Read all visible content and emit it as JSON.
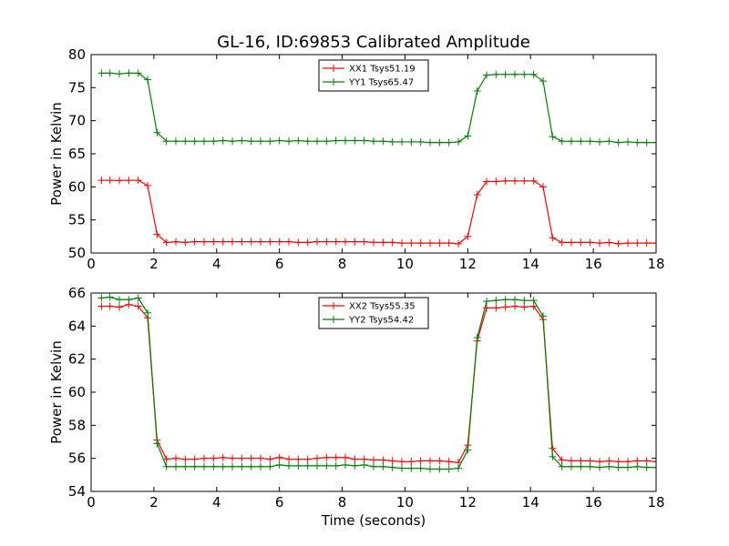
{
  "chart_data": [
    {
      "type": "line",
      "title": "GL-16, ID:69853 Calibrated Amplitude",
      "xlabel": "",
      "ylabel": "Power in Kelvin",
      "xlim": [
        0,
        18
      ],
      "ylim": [
        50,
        80
      ],
      "xticks": [
        0,
        2,
        4,
        6,
        8,
        10,
        12,
        14,
        16,
        18
      ],
      "yticks": [
        50,
        55,
        60,
        65,
        70,
        75,
        80
      ],
      "legend_position": "top-center",
      "x": [
        0.33,
        0.6,
        0.9,
        1.2,
        1.5,
        1.8,
        2.1,
        2.4,
        2.7,
        3.0,
        3.3,
        3.6,
        3.9,
        4.2,
        4.5,
        4.8,
        5.1,
        5.4,
        5.7,
        6.0,
        6.3,
        6.6,
        6.9,
        7.2,
        7.5,
        7.8,
        8.1,
        8.4,
        8.7,
        9.0,
        9.3,
        9.6,
        9.9,
        10.2,
        10.5,
        10.8,
        11.1,
        11.4,
        11.7,
        12.0,
        12.3,
        12.6,
        12.9,
        13.2,
        13.5,
        13.8,
        14.1,
        14.4,
        14.7,
        15.0,
        15.3,
        15.6,
        15.9,
        16.2,
        16.5,
        16.8,
        17.1,
        17.4,
        17.7,
        18.0
      ],
      "series": [
        {
          "name": "XX1 Tsys51.19",
          "color": "#ff0000",
          "values": [
            61.0,
            61.0,
            60.95,
            61.0,
            61.0,
            60.2,
            52.8,
            51.6,
            51.7,
            51.6,
            51.7,
            51.7,
            51.7,
            51.7,
            51.7,
            51.7,
            51.7,
            51.7,
            51.7,
            51.7,
            51.7,
            51.6,
            51.6,
            51.7,
            51.7,
            51.7,
            51.7,
            51.7,
            51.7,
            51.6,
            51.6,
            51.6,
            51.5,
            51.5,
            51.5,
            51.5,
            51.5,
            51.5,
            51.4,
            52.5,
            58.8,
            60.8,
            60.8,
            60.9,
            60.9,
            60.9,
            60.9,
            60.0,
            52.3,
            51.6,
            51.6,
            51.6,
            51.6,
            51.5,
            51.6,
            51.4,
            51.5,
            51.5,
            51.5,
            51.5
          ]
        },
        {
          "name": "YY1 Tsys65.47",
          "color": "#008000",
          "values": [
            77.2,
            77.2,
            77.1,
            77.2,
            77.2,
            76.2,
            68.2,
            66.9,
            66.9,
            66.9,
            66.9,
            66.9,
            66.9,
            67.0,
            66.9,
            67.0,
            66.9,
            66.9,
            66.9,
            67.0,
            66.9,
            67.0,
            66.9,
            66.9,
            66.9,
            67.0,
            67.0,
            67.0,
            67.0,
            66.9,
            66.9,
            66.8,
            66.8,
            66.8,
            66.8,
            66.7,
            66.7,
            66.7,
            66.8,
            67.7,
            74.5,
            76.9,
            77.0,
            77.0,
            77.0,
            77.0,
            77.0,
            76.0,
            67.6,
            66.9,
            66.9,
            66.9,
            66.9,
            66.8,
            66.9,
            66.7,
            66.8,
            66.7,
            66.7,
            66.7
          ]
        }
      ]
    },
    {
      "type": "line",
      "title": "",
      "xlabel": "Time (seconds)",
      "ylabel": "Power in Kelvin",
      "xlim": [
        0,
        18
      ],
      "ylim": [
        54,
        66
      ],
      "xticks": [
        0,
        2,
        4,
        6,
        8,
        10,
        12,
        14,
        16,
        18
      ],
      "yticks": [
        54,
        56,
        58,
        60,
        62,
        64,
        66
      ],
      "legend_position": "top-center",
      "x": [
        0.33,
        0.6,
        0.9,
        1.2,
        1.5,
        1.8,
        2.1,
        2.4,
        2.7,
        3.0,
        3.3,
        3.6,
        3.9,
        4.2,
        4.5,
        4.8,
        5.1,
        5.4,
        5.7,
        6.0,
        6.3,
        6.6,
        6.9,
        7.2,
        7.5,
        7.8,
        8.1,
        8.4,
        8.7,
        9.0,
        9.3,
        9.6,
        9.9,
        10.2,
        10.5,
        10.8,
        11.1,
        11.4,
        11.7,
        12.0,
        12.3,
        12.6,
        12.9,
        13.2,
        13.5,
        13.8,
        14.1,
        14.4,
        14.7,
        15.0,
        15.3,
        15.6,
        15.9,
        16.2,
        16.5,
        16.8,
        17.1,
        17.4,
        17.7,
        18.0
      ],
      "series": [
        {
          "name": "XX2 Tsys55.35",
          "color": "#ff0000",
          "values": [
            65.2,
            65.2,
            65.15,
            65.3,
            65.2,
            64.5,
            57.1,
            55.95,
            56.0,
            55.95,
            55.95,
            56.0,
            56.0,
            56.05,
            56.0,
            56.0,
            56.0,
            56.0,
            55.95,
            56.05,
            55.95,
            55.95,
            55.95,
            56.0,
            56.05,
            56.05,
            56.05,
            55.95,
            55.95,
            55.9,
            55.9,
            55.85,
            55.8,
            55.8,
            55.85,
            55.85,
            55.85,
            55.8,
            55.75,
            56.8,
            63.1,
            65.1,
            65.1,
            65.15,
            65.2,
            65.15,
            65.2,
            64.4,
            56.6,
            55.9,
            55.85,
            55.85,
            55.85,
            55.8,
            55.85,
            55.8,
            55.8,
            55.85,
            55.85,
            55.8
          ]
        },
        {
          "name": "YY2 Tsys54.42",
          "color": "#008000",
          "values": [
            65.7,
            65.75,
            65.6,
            65.6,
            65.7,
            64.8,
            56.9,
            55.5,
            55.5,
            55.5,
            55.5,
            55.5,
            55.5,
            55.5,
            55.5,
            55.5,
            55.5,
            55.5,
            55.5,
            55.6,
            55.55,
            55.55,
            55.55,
            55.55,
            55.55,
            55.55,
            55.6,
            55.55,
            55.6,
            55.5,
            55.5,
            55.45,
            55.4,
            55.4,
            55.4,
            55.35,
            55.35,
            55.35,
            55.4,
            56.5,
            63.3,
            65.5,
            65.55,
            65.6,
            65.6,
            65.55,
            65.55,
            64.6,
            56.1,
            55.5,
            55.5,
            55.5,
            55.5,
            55.45,
            55.5,
            55.45,
            55.45,
            55.5,
            55.45,
            55.45
          ]
        }
      ]
    }
  ]
}
